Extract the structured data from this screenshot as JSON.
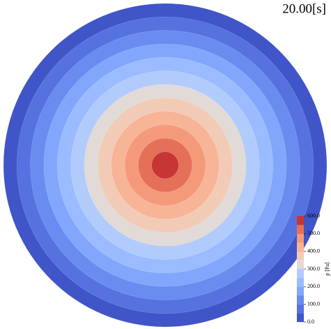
{
  "time_label": "20.00[s]",
  "colorbar": {
    "label": "p [Pa]",
    "lim": [
      0,
      600
    ],
    "ticks": [
      {
        "value": 0,
        "label": "0.0"
      },
      {
        "value": 100,
        "label": "100.0"
      },
      {
        "value": 200,
        "label": "200.0"
      },
      {
        "value": 300,
        "label": "300.0"
      },
      {
        "value": 400,
        "label": "400.0"
      },
      {
        "value": 500,
        "label": "500.0"
      },
      {
        "value": 600,
        "label": "600.0"
      }
    ],
    "levels": [
      0,
      50,
      100,
      150,
      200,
      250,
      300,
      350,
      400,
      450,
      500,
      550,
      600
    ],
    "colors": [
      "#4055c8",
      "#5572df",
      "#6a8bef",
      "#82a6fb",
      "#9abbff",
      "#b1cbfc",
      "#e1dad6",
      "#f2cbb7",
      "#f7b497",
      "#f49a7b",
      "#e57058",
      "#c73635"
    ]
  }
}
